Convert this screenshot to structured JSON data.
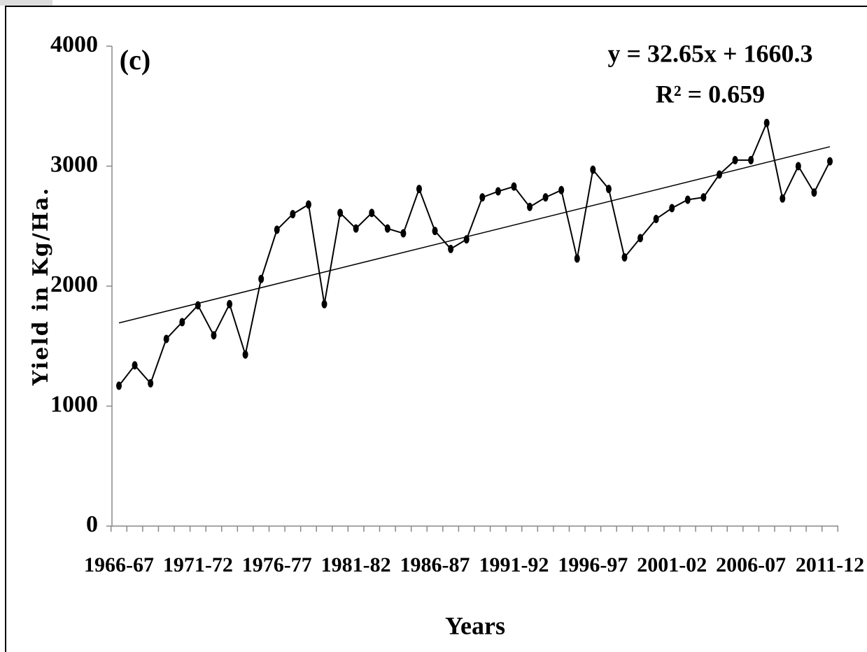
{
  "chart_data": {
    "type": "line",
    "panel_label": "(c)",
    "x_label": "Years",
    "y_label": "Yield in Kg/Ha.",
    "categories": [
      "1966-67",
      null,
      null,
      null,
      null,
      "1971-72",
      null,
      null,
      null,
      null,
      "1976-77",
      null,
      null,
      null,
      null,
      "1981-82",
      null,
      null,
      null,
      null,
      "1986-87",
      null,
      null,
      null,
      null,
      "1991-92",
      null,
      null,
      null,
      null,
      "1996-97",
      null,
      null,
      null,
      null,
      "2001-02",
      null,
      null,
      null,
      null,
      "2006-07",
      null,
      null,
      null,
      null,
      "2011-12"
    ],
    "values": [
      1170,
      1340,
      1190,
      1560,
      1700,
      1840,
      1590,
      1850,
      1430,
      2060,
      2470,
      2600,
      2680,
      1850,
      2610,
      2480,
      2610,
      2480,
      2440,
      2810,
      2460,
      2310,
      2390,
      2740,
      2790,
      2830,
      2660,
      2740,
      2800,
      2230,
      2970,
      2810,
      2240,
      2400,
      2560,
      2650,
      2720,
      2740,
      2930,
      3050,
      3050,
      3360,
      2730,
      3000,
      2780,
      3040
    ],
    "color": "#000000",
    "ylim": [
      0,
      4000
    ],
    "yticks": [
      0,
      1000,
      2000,
      3000,
      4000
    ],
    "trendline": {
      "equation": "y = 32.65x + 1660.3",
      "slope": 32.65,
      "intercept": 1660.3,
      "r_squared": "R² = 0.659"
    }
  }
}
